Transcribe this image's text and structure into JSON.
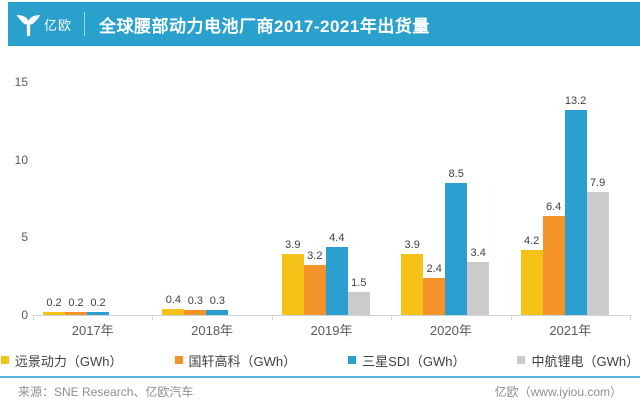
{
  "header": {
    "logo_text": "亿欧",
    "title": "全球腰部动力电池厂商2017-2021年出货量"
  },
  "chart_data": {
    "type": "bar",
    "title": "全球腰部动力电池厂商2017-2021年出货量",
    "xlabel": "",
    "ylabel": "",
    "categories": [
      "2017年",
      "2018年",
      "2019年",
      "2020年",
      "2021年"
    ],
    "series": [
      {
        "name": "远景动力（GWh）",
        "color": "#F5C318",
        "values": [
          0.2,
          0.4,
          3.9,
          3.9,
          4.2
        ]
      },
      {
        "name": "国轩高科（GWh）",
        "color": "#F5932B",
        "values": [
          0.2,
          0.3,
          3.2,
          2.4,
          6.4
        ]
      },
      {
        "name": "三星SDI（GWh）",
        "color": "#2C9FD1",
        "values": [
          0.2,
          0.3,
          4.4,
          8.5,
          13.2
        ]
      },
      {
        "name": "中航锂电（GWh）",
        "color": "#CBCBCB",
        "values": [
          null,
          null,
          1.5,
          3.4,
          7.9
        ]
      }
    ],
    "y_ticks": [
      0,
      5,
      10,
      15
    ],
    "ylim": [
      0,
      15
    ],
    "grid": false,
    "legend_position": "bottom"
  },
  "footer": {
    "source": "来源：SNE Research、亿欧汽车",
    "site": "亿欧（www.iyiou.com）"
  },
  "colors": {
    "header_bg": "#2AA1CC",
    "footer_divider": "#58B6DA",
    "axis": "#CCD6DD"
  }
}
